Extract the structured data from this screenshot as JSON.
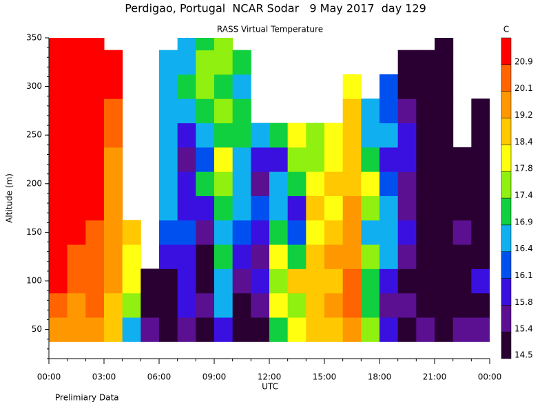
{
  "chart_data": {
    "type": "heatmap",
    "title": "Perdigao, Portugal  NCAR Sodar   9 May 2017  day 129",
    "subtitle": "RASS Virtual Temperature",
    "y_label": "Altitude (m)",
    "x_label": "UTC",
    "note": "Prelimiary Data",
    "colorbar_title": "C",
    "x": [
      0,
      1,
      2,
      3,
      4,
      5,
      6,
      7,
      8,
      9,
      10,
      11,
      12,
      13,
      14,
      15,
      16,
      17,
      18,
      19,
      20,
      21,
      22,
      23
    ],
    "y": [
      50,
      75,
      100,
      125,
      150,
      175,
      200,
      225,
      250,
      275,
      300,
      325,
      350
    ],
    "z": [
      [
        19.5,
        20.5,
        21,
        21,
        21.5,
        21.5,
        21.5,
        21.5,
        21.5,
        21.5,
        21.5,
        21.5,
        21.5
      ],
      [
        19.5,
        20,
        20.5,
        20.5,
        21,
        21,
        21,
        21.5,
        21.5,
        21.5,
        21.5,
        21.5,
        21.5
      ],
      [
        20,
        20.5,
        20.5,
        20.5,
        20.5,
        21,
        21,
        21,
        21,
        21.5,
        21.5,
        21.5,
        21.5
      ],
      [
        19,
        19,
        19.5,
        19.5,
        19.5,
        19.5,
        20,
        20,
        20.5,
        20.5,
        21,
        21,
        null
      ],
      [
        16.5,
        17.5,
        18,
        18,
        18.5,
        null,
        null,
        null,
        null,
        null,
        null,
        null,
        null
      ],
      [
        15.5,
        15,
        15.2,
        null,
        null,
        null,
        null,
        null,
        null,
        null,
        null,
        null,
        null
      ],
      [
        14.8,
        15,
        15.2,
        16,
        16.2,
        16.5,
        16.5,
        16.5,
        16.5,
        16.5,
        16.5,
        16.5,
        null
      ],
      [
        15.5,
        16,
        15.8,
        16,
        16.2,
        15.8,
        16,
        15.5,
        16,
        16.8,
        17,
        16.5,
        16.5
      ],
      [
        15.2,
        15.5,
        14.8,
        15,
        15.5,
        16,
        17,
        16.2,
        16.5,
        17,
        17.5,
        17.4,
        17
      ],
      [
        16,
        16.5,
        16.5,
        17,
        16.5,
        17,
        17.5,
        18,
        17,
        17.5,
        17,
        17.6,
        17.5
      ],
      [
        14.8,
        15.2,
        15.5,
        16,
        16.2,
        16.5,
        16.4,
        16.5,
        17,
        17.2,
        16.8,
        17,
        null
      ],
      [
        15,
        15.5,
        15.8,
        15.5,
        16,
        16.2,
        15.5,
        16,
        16.5,
        null,
        null,
        null,
        null
      ],
      [
        17,
        18,
        17.5,
        18,
        17,
        16.5,
        16.5,
        16,
        17,
        null,
        null,
        null,
        null
      ],
      [
        18,
        17.5,
        18.5,
        17.2,
        16.2,
        15.8,
        17,
        17.5,
        18,
        null,
        null,
        null,
        null
      ],
      [
        18.5,
        18.8,
        18.6,
        19,
        18.2,
        18.5,
        18,
        17.5,
        17.5,
        null,
        null,
        null,
        null
      ],
      [
        19,
        19.3,
        18.8,
        19.2,
        18.6,
        18,
        18.4,
        17.8,
        18,
        null,
        null,
        null,
        null
      ],
      [
        19.5,
        20.2,
        20.5,
        19.8,
        19.5,
        19.4,
        19,
        18.8,
        18.5,
        18.8,
        18.2,
        null,
        null
      ],
      [
        17.5,
        17.2,
        17,
        17.5,
        16.8,
        17.5,
        18,
        17,
        16.5,
        16.5,
        null,
        null,
        null
      ],
      [
        16,
        15.5,
        16,
        16.5,
        16.4,
        16.5,
        16.2,
        16,
        16.5,
        16.2,
        16.2,
        null,
        null
      ],
      [
        15.2,
        15.5,
        15,
        15.5,
        15.8,
        15.6,
        15.4,
        15.8,
        16,
        15.5,
        15.2,
        15.2,
        null
      ],
      [
        15.5,
        14.8,
        15,
        15.2,
        15,
        14.8,
        15,
        15.2,
        14.8,
        14.8,
        15,
        14.8,
        null
      ],
      [
        15,
        14.8,
        15.2,
        14.8,
        14.8,
        14.6,
        14.8,
        14.6,
        14.6,
        14.6,
        14.6,
        14.6,
        14.6
      ],
      [
        15.5,
        15.2,
        15,
        15.2,
        15.5,
        15,
        14.8,
        14.6,
        null,
        null,
        null,
        null,
        null
      ],
      [
        15.5,
        15.2,
        15.8,
        15,
        15.2,
        15,
        14.8,
        14.6,
        14.6,
        14.6,
        null,
        null,
        null
      ]
    ],
    "xlim": [
      0,
      24
    ],
    "xticks": [
      {
        "value": 0,
        "label": "00:00"
      },
      {
        "value": 3,
        "label": "03:00"
      },
      {
        "value": 6,
        "label": "06:00"
      },
      {
        "value": 9,
        "label": "09:00"
      },
      {
        "value": 12,
        "label": "12:00"
      },
      {
        "value": 15,
        "label": "15:00"
      },
      {
        "value": 18,
        "label": "18:00"
      },
      {
        "value": 21,
        "label": "21:00"
      },
      {
        "value": 24,
        "label": "00:00"
      }
    ],
    "ylim": [
      20,
      350
    ],
    "yticks": [
      50,
      100,
      150,
      200,
      250,
      300,
      350
    ],
    "levels": [
      14.5,
      15.4,
      15.8,
      16.1,
      16.4,
      16.9,
      17.4,
      17.8,
      18.4,
      19.2,
      20.1,
      20.9
    ],
    "colors": [
      "#2a0033",
      "#5a1090",
      "#3a10e0",
      "#0050f0",
      "#10b0f0",
      "#10d040",
      "#90f010",
      "#ffff10",
      "#ffc800",
      "#ff9800",
      "#ff6400",
      "#ff0000"
    ]
  }
}
